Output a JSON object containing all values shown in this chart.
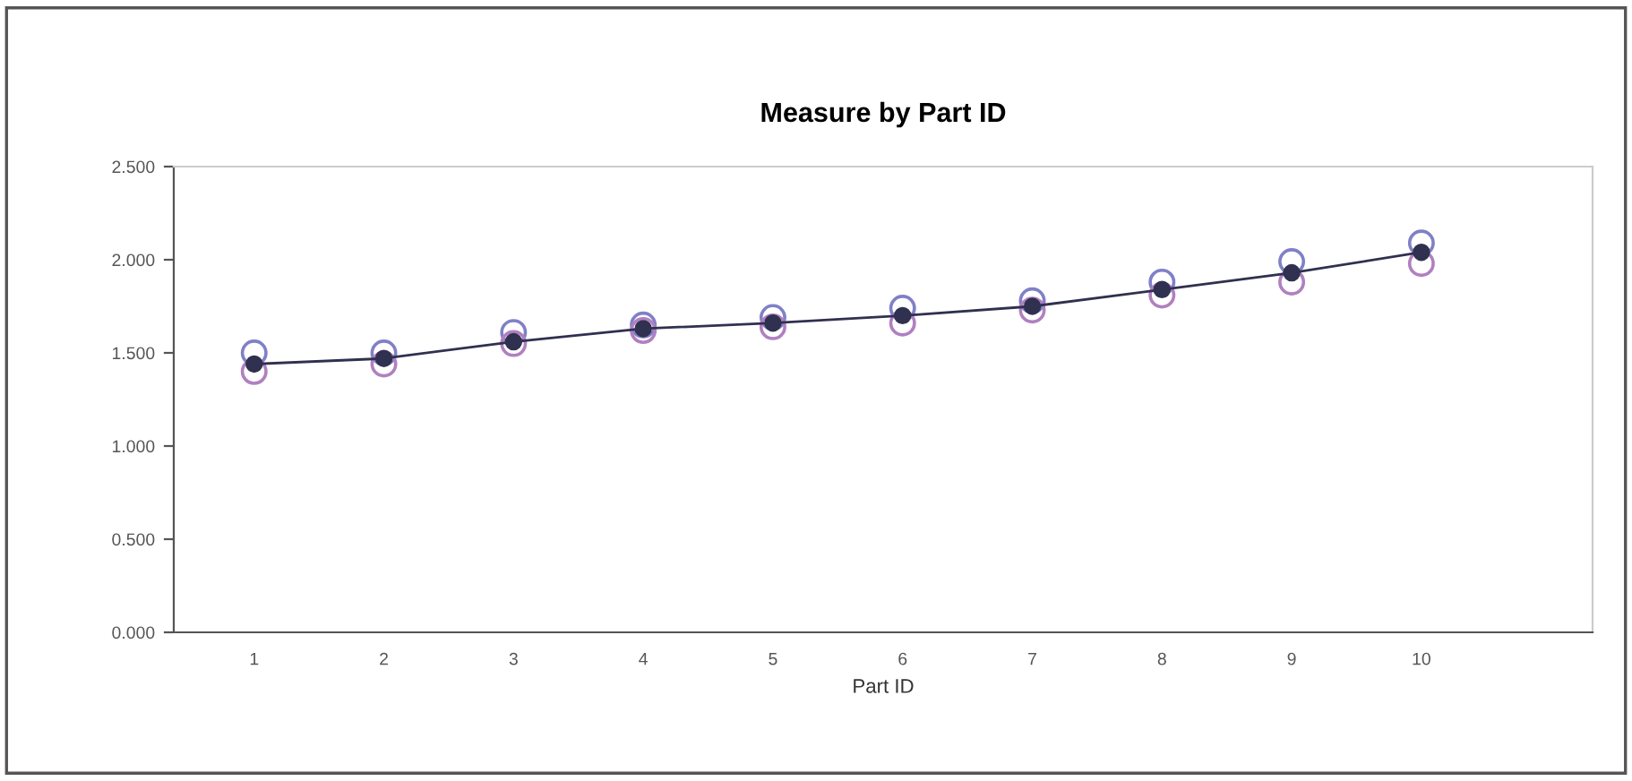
{
  "chart_data": {
    "type": "scatter",
    "title": "Measure by Part ID",
    "xlabel": "Part ID",
    "categories": [
      "1",
      "2",
      "3",
      "4",
      "5",
      "6",
      "7",
      "8",
      "9",
      "10"
    ],
    "series": [
      {
        "color": "#8080c8",
        "marker": "circle",
        "values": [
          1.5,
          1.5,
          1.61,
          1.65,
          1.69,
          1.74,
          1.78,
          1.88,
          1.99,
          2.09
        ]
      },
      {
        "color": "#b080c0",
        "marker": "circle",
        "values": [
          1.4,
          1.44,
          1.55,
          1.62,
          1.64,
          1.66,
          1.73,
          1.81,
          1.88,
          1.98
        ]
      },
      {
        "type": "line",
        "color": "#303050",
        "marker": "circle",
        "values": [
          1.44,
          1.47,
          1.56,
          1.63,
          1.66,
          1.7,
          1.75,
          1.84,
          1.93,
          2.04
        ]
      }
    ],
    "ylim": [
      0,
      2.5
    ],
    "yticks": [
      {
        "value": 0,
        "label": "0.000"
      },
      {
        "value": 0.5,
        "label": "0.500"
      },
      {
        "value": 1.0,
        "label": "1.000"
      },
      {
        "value": 1.5,
        "label": "1.500"
      },
      {
        "value": 2.0,
        "label": "2.000"
      },
      {
        "value": 2.5,
        "label": "2.500"
      }
    ],
    "grid": false,
    "legend": false
  }
}
